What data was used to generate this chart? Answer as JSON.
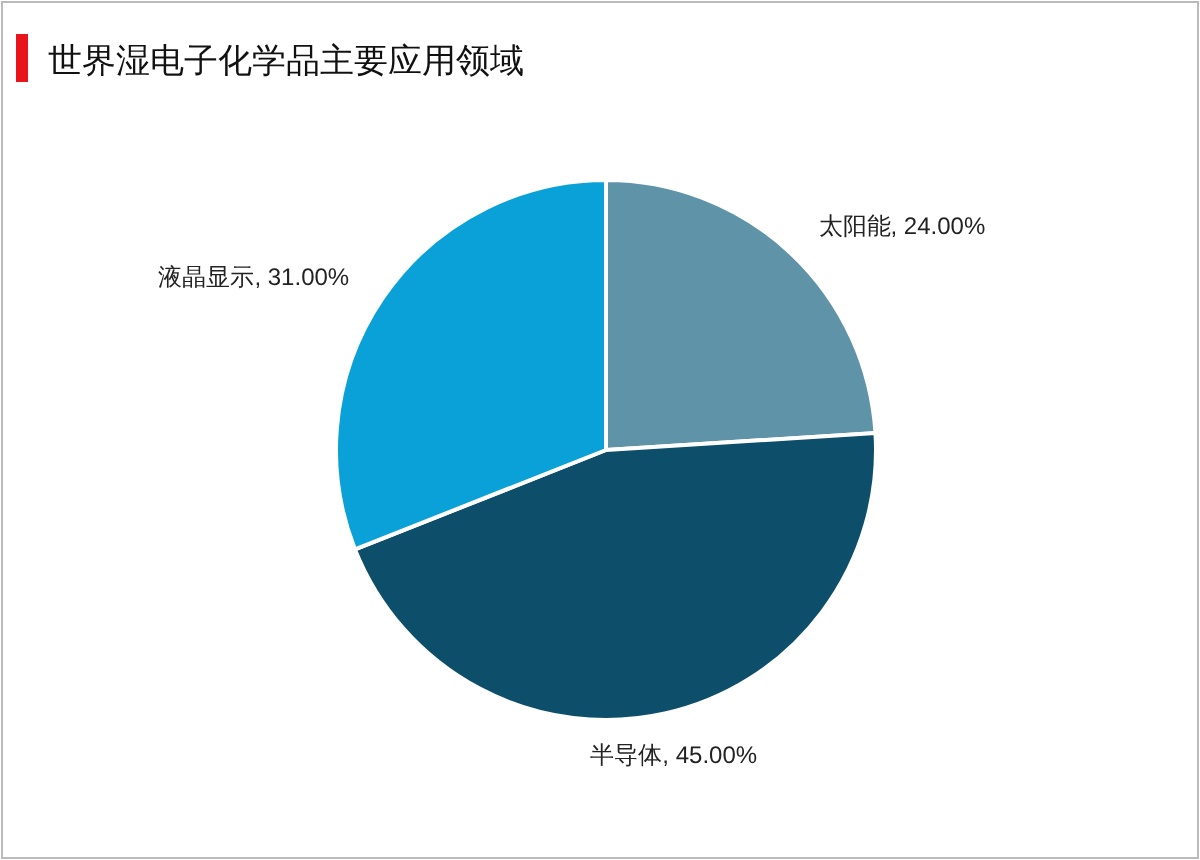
{
  "chart_data": {
    "type": "pie",
    "title": "世界湿电子化学品主要应用领域",
    "categories": [
      "太阳能",
      "半导体",
      "液晶显示"
    ],
    "values": [
      24,
      45,
      31
    ],
    "value_labels": [
      "24.00%",
      "45.00%",
      "31.00%"
    ],
    "colors": [
      "#5f93a8",
      "#0d4f6b",
      "#0aa0d8"
    ]
  }
}
